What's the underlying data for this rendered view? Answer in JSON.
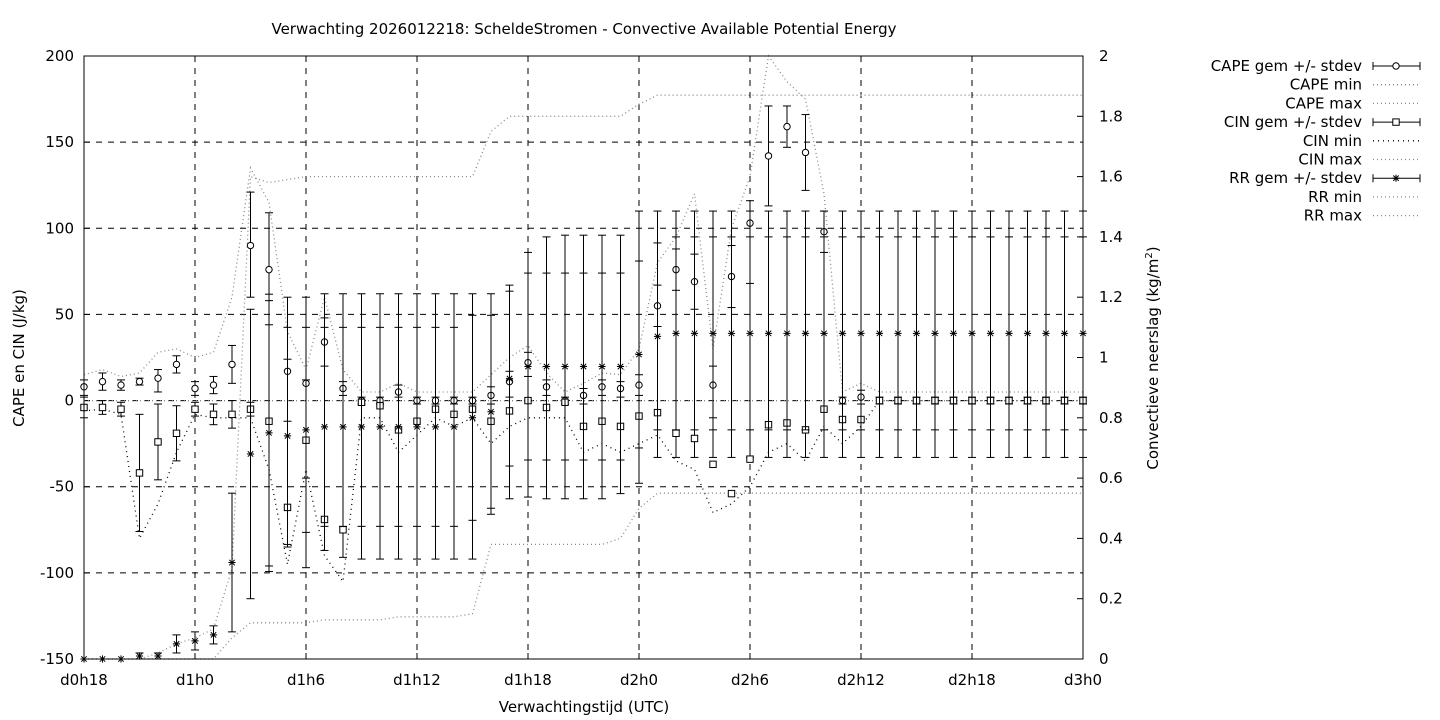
{
  "chart_data": {
    "type": "line",
    "title": "Verwachting 2026012218: ScheldeStromen - Convective Available Potential Energy",
    "xlabel": "Verwachtingstijd (UTC)",
    "ylabel": "CAPE en CIN (J/kg)",
    "y2label_main": "Convectieve neerslag (kg/m",
    "y2label_sup": "2",
    "y2label_end": ")",
    "grid": true,
    "legend_position": "outside-top-right",
    "xlim": [
      18,
      72
    ],
    "ylim": [
      -150,
      200
    ],
    "y2lim": [
      0,
      2
    ],
    "x_ticks": [
      {
        "x": 18,
        "label": "d0h18"
      },
      {
        "x": 24,
        "label": "d1h0"
      },
      {
        "x": 30,
        "label": "d1h6"
      },
      {
        "x": 36,
        "label": "d1h12"
      },
      {
        "x": 42,
        "label": "d1h18"
      },
      {
        "x": 48,
        "label": "d2h0"
      },
      {
        "x": 54,
        "label": "d2h6"
      },
      {
        "x": 60,
        "label": "d2h12"
      },
      {
        "x": 66,
        "label": "d2h18"
      },
      {
        "x": 72,
        "label": "d3h0"
      }
    ],
    "y_ticks": [
      "-150",
      "-100",
      "-50",
      "0",
      "50",
      "100",
      "150",
      "200"
    ],
    "y2_ticks": [
      "0",
      "0.2",
      "0.4",
      "0.6",
      "0.8",
      "1",
      "1.2",
      "1.4",
      "1.6",
      "1.8",
      "2"
    ],
    "x": [
      18,
      19,
      20,
      21,
      22,
      23,
      24,
      25,
      26,
      27,
      28,
      29,
      30,
      31,
      32,
      33,
      34,
      35,
      36,
      37,
      38,
      39,
      40,
      41,
      42,
      43,
      44,
      45,
      46,
      47,
      48,
      49,
      50,
      51,
      52,
      53,
      54,
      55,
      56,
      57,
      58,
      59,
      60,
      61,
      62,
      63,
      64,
      65,
      66,
      67,
      68,
      69,
      70,
      71,
      72
    ],
    "series": [
      {
        "name": "CAPE gem +/- stdev",
        "marker": "circle",
        "axis": "y1",
        "values": [
          8,
          11,
          9,
          11,
          13,
          21,
          7,
          9,
          21,
          90,
          76,
          17,
          10,
          34,
          7,
          0,
          0,
          5,
          0,
          0,
          0,
          0,
          3,
          11,
          22,
          8,
          0,
          3,
          8,
          7,
          9,
          55,
          76,
          69,
          9,
          72,
          103,
          142,
          159,
          144,
          98,
          0,
          2,
          0,
          0,
          0,
          0,
          0,
          0,
          0,
          0,
          0,
          0,
          0,
          0
        ],
        "low": [
          3,
          6,
          6,
          9,
          5,
          16,
          3,
          4,
          10,
          60,
          44,
          -12,
          -45,
          20,
          3,
          -2,
          -2,
          2,
          -2,
          -2,
          -2,
          -2,
          -2,
          2,
          14,
          3,
          -2,
          -2,
          3,
          2,
          3,
          43,
          64,
          53,
          -10,
          54,
          68,
          113,
          147,
          122,
          86,
          -2,
          -2,
          -2,
          -2,
          -2,
          -2,
          -2,
          -2,
          -2,
          -2,
          -2,
          -2,
          -2,
          -2
        ],
        "high": [
          12,
          16,
          12,
          13,
          18,
          26,
          11,
          14,
          32,
          121,
          109,
          24,
          12,
          48,
          11,
          2,
          2,
          9,
          2,
          2,
          2,
          2,
          8,
          17,
          28,
          12,
          2,
          7,
          12,
          11,
          15,
          67,
          88,
          85,
          20,
          90,
          116,
          171,
          171,
          166,
          110,
          2,
          6,
          2,
          2,
          2,
          2,
          2,
          2,
          2,
          2,
          2,
          2,
          2,
          2
        ]
      },
      {
        "name": "CAPE min",
        "style": "dotted-light",
        "axis": "y1",
        "values": [
          0,
          0,
          0,
          0,
          0,
          0,
          0,
          0,
          0,
          0,
          0,
          0,
          0,
          0,
          0,
          0,
          0,
          0,
          0,
          0,
          0,
          0,
          0,
          0,
          0,
          0,
          0,
          0,
          0,
          0,
          0,
          0,
          0,
          0,
          0,
          0,
          0,
          0,
          0,
          0,
          0,
          0,
          0,
          0,
          0,
          0,
          0,
          0,
          0,
          0,
          0,
          0,
          0,
          0,
          0
        ]
      },
      {
        "name": "CAPE max",
        "style": "dotted-light",
        "axis": "y1",
        "values": [
          15,
          18,
          14,
          16,
          28,
          30,
          25,
          28,
          60,
          135,
          115,
          40,
          18,
          60,
          18,
          5,
          5,
          10,
          5,
          5,
          5,
          5,
          15,
          25,
          32,
          16,
          5,
          10,
          16,
          15,
          30,
          80,
          95,
          120,
          30,
          100,
          130,
          200,
          185,
          175,
          120,
          5,
          10,
          5,
          5,
          5,
          5,
          5,
          5,
          5,
          5,
          5,
          5,
          5,
          5
        ]
      },
      {
        "name": "CIN gem +/- stdev",
        "marker": "square",
        "axis": "y1",
        "values": [
          -4,
          -4,
          -5,
          -42,
          -24,
          -19,
          -5,
          -8,
          -8,
          -5,
          -12,
          -62,
          -23,
          -69,
          -75,
          -1,
          -3,
          -17,
          -12,
          -5,
          -8,
          -5,
          -12,
          -6,
          0,
          -4,
          -1,
          -15,
          -12,
          -15,
          -9,
          -7,
          -19,
          -22,
          -37,
          -54,
          -34,
          -14,
          -13,
          -17,
          -5,
          -11,
          -11,
          0,
          0,
          0,
          0,
          0,
          0,
          0,
          0,
          0,
          0,
          0,
          0
        ],
        "low": [
          -10,
          -8,
          -9,
          -76,
          -46,
          -35,
          -9,
          -14,
          -16,
          -9,
          -96,
          -85,
          -97,
          -87,
          -91,
          -92,
          -92,
          -92,
          -92,
          -92,
          -92,
          -92,
          -66,
          -57,
          -56,
          -57,
          -57,
          -57,
          -57,
          -54,
          -48,
          -33,
          -33,
          -33,
          -33,
          -33,
          -33,
          -33,
          -33,
          -33,
          -33,
          -33,
          -33,
          -33,
          -33,
          -33,
          -33,
          -33,
          -33,
          -33,
          -33,
          -33,
          -33,
          -33,
          -33
        ],
        "high": [
          2,
          0,
          -1,
          -8,
          -2,
          -3,
          -1,
          -2,
          0,
          -1,
          58,
          60,
          60,
          62,
          62,
          62,
          62,
          62,
          62,
          62,
          62,
          62,
          62,
          67,
          86,
          95,
          96,
          96,
          96,
          96,
          110,
          110,
          110,
          110,
          110,
          110,
          110,
          110,
          110,
          110,
          110,
          110,
          110,
          110,
          110,
          110,
          110,
          110,
          110,
          110,
          110,
          110,
          110,
          110,
          110
        ]
      },
      {
        "name": "CIN min",
        "style": "dotted-dark",
        "axis": "y1",
        "values": [
          -6,
          -5,
          -8,
          -80,
          -60,
          -30,
          -8,
          -10,
          -10,
          -10,
          -40,
          -95,
          -40,
          -90,
          -105,
          -10,
          -10,
          -30,
          -20,
          -10,
          -15,
          -10,
          -25,
          -15,
          -10,
          -10,
          -10,
          -30,
          -25,
          -30,
          -25,
          -20,
          -35,
          -40,
          -65,
          -60,
          -50,
          -30,
          -25,
          -35,
          -15,
          -25,
          -15,
          0,
          0,
          0,
          0,
          0,
          0,
          0,
          0,
          0,
          0,
          0,
          0
        ]
      },
      {
        "name": "CIN max",
        "style": "dotted-light",
        "axis": "y1",
        "values": [
          0,
          0,
          0,
          0,
          0,
          0,
          0,
          0,
          0,
          0,
          0,
          0,
          0,
          0,
          0,
          0,
          0,
          0,
          0,
          0,
          0,
          0,
          0,
          0,
          0,
          0,
          0,
          0,
          0,
          0,
          0,
          0,
          0,
          0,
          0,
          0,
          0,
          0,
          0,
          0,
          0,
          0,
          0,
          0,
          0,
          0,
          0,
          0,
          0,
          0,
          0,
          0,
          0,
          0,
          0
        ]
      },
      {
        "name": "RR gem +/- stdev",
        "marker": "star",
        "axis": "y2",
        "values": [
          0,
          0,
          0,
          0.01,
          0.01,
          0.05,
          0.06,
          0.08,
          0.32,
          0.68,
          0.75,
          0.74,
          0.76,
          0.77,
          0.77,
          0.77,
          0.77,
          0.77,
          0.77,
          0.77,
          0.77,
          0.8,
          0.82,
          0.93,
          0.97,
          0.97,
          0.97,
          0.97,
          0.97,
          0.97,
          1.01,
          1.07,
          1.08,
          1.08,
          1.08,
          1.08,
          1.08,
          1.08,
          1.08,
          1.08,
          1.08,
          1.08,
          1.08,
          1.08,
          1.08,
          1.08,
          1.08,
          1.08,
          1.08,
          1.08,
          1.08,
          1.08,
          1.08,
          1.08,
          1.08
        ],
        "low": [
          0,
          0,
          0,
          0,
          0,
          0.02,
          0.03,
          0.05,
          0.09,
          0.2,
          0.29,
          0.38,
          0.42,
          0.44,
          0.44,
          0.44,
          0.44,
          0.44,
          0.44,
          0.44,
          0.44,
          0.46,
          0.5,
          0.64,
          0.66,
          0.66,
          0.66,
          0.66,
          0.66,
          0.66,
          0.7,
          0.76,
          0.76,
          0.76,
          0.76,
          0.76,
          0.76,
          0.76,
          0.76,
          0.76,
          0.76,
          0.76,
          0.76,
          0.76,
          0.76,
          0.76,
          0.76,
          0.76,
          0.76,
          0.76,
          0.76,
          0.76,
          0.76,
          0.76,
          0.76
        ],
        "high": [
          0,
          0,
          0,
          0.02,
          0.02,
          0.08,
          0.09,
          0.11,
          0.55,
          1.16,
          1.21,
          1.1,
          1.1,
          1.1,
          1.1,
          1.1,
          1.1,
          1.1,
          1.1,
          1.1,
          1.1,
          1.14,
          1.14,
          1.22,
          1.28,
          1.28,
          1.28,
          1.28,
          1.28,
          1.28,
          1.32,
          1.38,
          1.4,
          1.4,
          1.4,
          1.4,
          1.4,
          1.4,
          1.4,
          1.4,
          1.4,
          1.4,
          1.4,
          1.4,
          1.4,
          1.4,
          1.4,
          1.4,
          1.4,
          1.4,
          1.4,
          1.4,
          1.4,
          1.4,
          1.4
        ]
      },
      {
        "name": "RR min",
        "style": "dotted-light",
        "axis": "y2",
        "values": [
          0,
          0,
          0,
          0,
          0,
          0,
          0,
          0,
          0.07,
          0.12,
          0.12,
          0.12,
          0.12,
          0.13,
          0.13,
          0.13,
          0.13,
          0.14,
          0.14,
          0.14,
          0.14,
          0.15,
          0.38,
          0.38,
          0.38,
          0.38,
          0.38,
          0.38,
          0.38,
          0.4,
          0.5,
          0.55,
          0.55,
          0.55,
          0.55,
          0.55,
          0.55,
          0.55,
          0.55,
          0.55,
          0.55,
          0.55,
          0.55,
          0.55,
          0.55,
          0.55,
          0.55,
          0.55,
          0.55,
          0.55,
          0.55,
          0.55,
          0.55,
          0.55,
          0.55
        ]
      },
      {
        "name": "RR max",
        "style": "dotted-light",
        "axis": "y2",
        "values": [
          0,
          0,
          0,
          0,
          0.02,
          0.05,
          0.07,
          0.1,
          0.3,
          1.6,
          1.58,
          1.59,
          1.6,
          1.6,
          1.6,
          1.6,
          1.6,
          1.6,
          1.6,
          1.6,
          1.6,
          1.6,
          1.75,
          1.8,
          1.8,
          1.8,
          1.8,
          1.8,
          1.8,
          1.8,
          1.84,
          1.87,
          1.87,
          1.87,
          1.87,
          1.87,
          1.87,
          1.87,
          1.87,
          1.87,
          1.87,
          1.87,
          1.87,
          1.87,
          1.87,
          1.87,
          1.87,
          1.87,
          1.87,
          1.87,
          1.87,
          1.87,
          1.87,
          1.87,
          1.87
        ]
      }
    ]
  }
}
